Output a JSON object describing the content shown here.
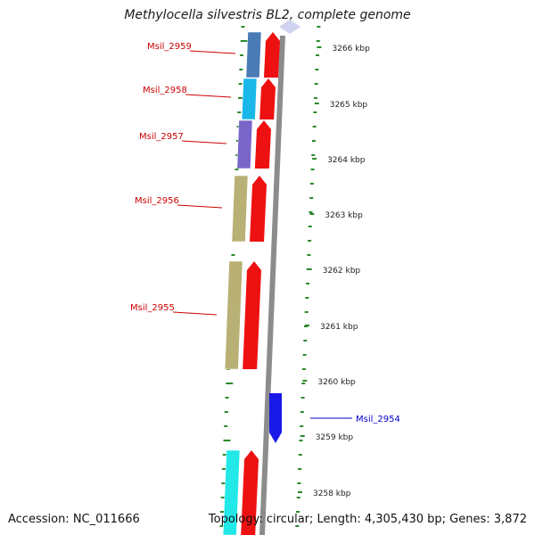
{
  "title": "Methylocella silvestris BL2, complete genome",
  "footer": {
    "accession": "Accession: NC_011666",
    "topology": "Topology: circular; Length: 4,305,430 bp; Genes: 3,872"
  },
  "ticks": [
    {
      "label": "3266 kbp"
    },
    {
      "label": "3265 kbp"
    },
    {
      "label": "3264 kbp"
    },
    {
      "label": "3263 kbp"
    },
    {
      "label": "3262 kbp"
    },
    {
      "label": "3261 kbp"
    },
    {
      "label": "3260 kbp"
    },
    {
      "label": "3259 kbp"
    },
    {
      "label": "3258 kbp"
    }
  ],
  "genes": [
    {
      "name": "Msil_2959",
      "strand": "reverse",
      "color": "#4a7bb5"
    },
    {
      "name": "Msil_2958",
      "strand": "reverse",
      "color": "#1ab8e8"
    },
    {
      "name": "Msil_2957",
      "strand": "reverse",
      "color": "#7a66c9"
    },
    {
      "name": "Msil_2956",
      "strand": "reverse",
      "color": "#b8b074"
    },
    {
      "name": "Msil_2955",
      "strand": "reverse",
      "color": "#b8b074"
    },
    {
      "name": "Msil_2954",
      "strand": "forward",
      "color": "#1a1ae8"
    },
    {
      "name": "",
      "strand": "reverse",
      "color": "#22e8e8"
    }
  ],
  "colors": {
    "gene_label_reverse": "#cc0000",
    "gene_label_forward": "#0000cc",
    "cds_track": "#ee1111",
    "scale_ticks": "#2a8a2a",
    "backbone": "#8c8c8c"
  }
}
